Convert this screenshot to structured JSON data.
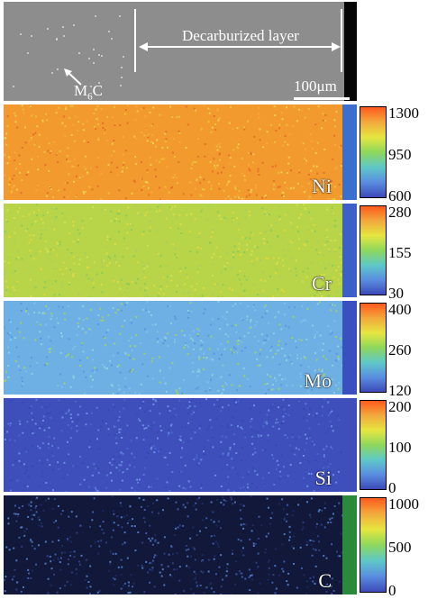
{
  "sem": {
    "layer_label": "Decarburized layer",
    "carbide_label": "M",
    "carbide_subscript": "6",
    "carbide_suffix": "C",
    "scale_label": "100μm",
    "background_color": "#8d8d8d"
  },
  "maps": [
    {
      "element": "Ni",
      "max": "1300",
      "mid": "950",
      "min": "600",
      "base_color": "#f29a2e",
      "speck_colors": [
        "#e8c23a",
        "#f7a93c",
        "#e5702a",
        "#f0d050"
      ],
      "strip_color": "#3a6fd0"
    },
    {
      "element": "Cr",
      "max": "280",
      "mid": "155",
      "min": "30",
      "base_color": "#b8d448",
      "speck_colors": [
        "#e0d840",
        "#8ccc5a",
        "#d6e04c",
        "#a6d060"
      ],
      "strip_color": "#3c60c8"
    },
    {
      "element": "Mo",
      "max": "400",
      "mid": "260",
      "min": "120",
      "base_color": "#6fb0e4",
      "speck_colors": [
        "#8cd0e0",
        "#5a98dc",
        "#9ad06a",
        "#7fc0ea"
      ],
      "strip_color": "#3a4fc0"
    },
    {
      "element": "Si",
      "max": "200",
      "mid": "100",
      "min": "0",
      "base_color": "#3e4fbc",
      "speck_colors": [
        "#4a64cc",
        "#5a7ad8",
        "#3648b0",
        "#6a8ee0"
      ],
      "strip_color": "#3e4fbc"
    },
    {
      "element": "C",
      "max": "1000",
      "mid": "500",
      "min": "0",
      "base_color": "#12183a",
      "speck_colors": [
        "#3c5aa8",
        "#2a3e80",
        "#4a78c0",
        "#1c2a60"
      ],
      "strip_color": "#2a8a3a"
    }
  ],
  "colorbar_gradient": [
    "#ff5a1e",
    "#f2a93c",
    "#e6e640",
    "#8ed85c",
    "#5ec8c8",
    "#5a8ee0",
    "#3c4ab8"
  ]
}
